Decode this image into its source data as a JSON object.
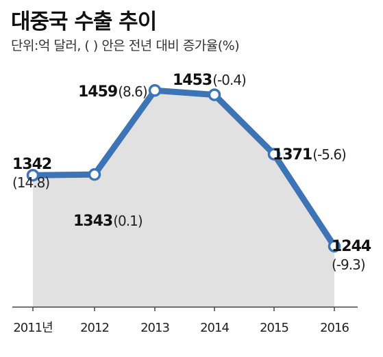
{
  "chart_data": {
    "type": "line",
    "title": "대중국 수출 추이",
    "subtitle": "단위:억 달러, ( ) 안은 전년 대비 증가율(%)",
    "categories": [
      "2011년",
      "2012",
      "2013",
      "2014",
      "2015",
      "2016"
    ],
    "values": [
      1342,
      1343,
      1459,
      1453,
      1371,
      1244
    ],
    "value_labels": [
      "1342",
      "1343",
      "1459",
      "1453",
      "1371",
      "1244"
    ],
    "change_labels": [
      "(14.8)",
      "(0.1)",
      "(8.6)",
      "(-0.4)",
      "(-5.6)",
      "(-9.3)"
    ],
    "ylim": [
      1160,
      1480
    ],
    "colors": {
      "line": "#3d74b6",
      "area": "#e1e1e1",
      "marker_fill": "#ffffff",
      "axis": "#444444"
    }
  }
}
